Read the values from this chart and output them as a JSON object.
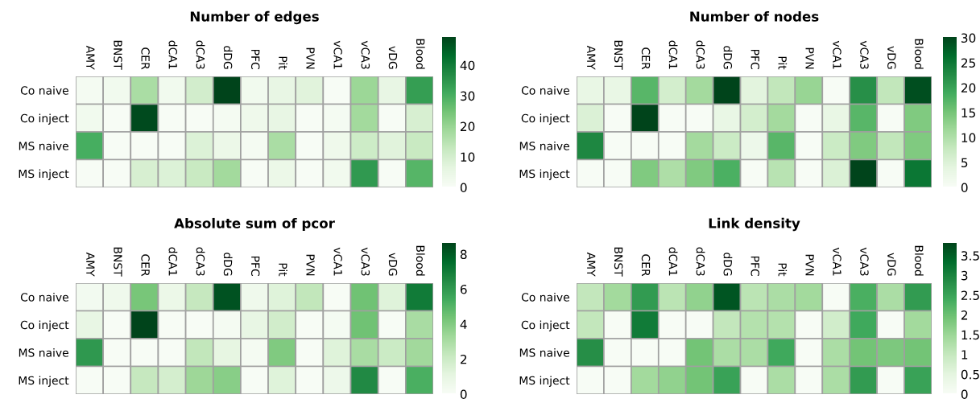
{
  "chart_data": [
    {
      "type": "heatmap",
      "title": "Number of edges",
      "categories": [
        "AMY",
        "BNST",
        "CER",
        "dCA1",
        "dCA3",
        "dDG",
        "PFC",
        "Pit",
        "PVN",
        "vCA1",
        "vCA3",
        "vDG",
        "Blood"
      ],
      "y_categories": [
        "Co naive",
        "Co inject",
        "MS naive",
        "MS inject"
      ],
      "cells": [
        [
          1,
          2,
          17,
          2,
          10,
          49,
          2,
          5,
          7,
          0,
          19,
          5,
          33
        ],
        [
          2,
          0,
          48,
          0,
          0,
          1,
          3,
          5,
          0,
          1,
          18,
          0,
          9
        ],
        [
          30,
          0,
          0,
          0,
          8,
          4,
          1,
          17,
          0,
          3,
          11,
          7,
          12
        ],
        [
          0,
          0,
          9,
          8,
          12,
          18,
          0,
          4,
          0,
          2,
          34,
          0,
          28
        ]
      ],
      "clim": [
        0,
        49
      ],
      "cticks": [
        0,
        10,
        20,
        30,
        40
      ]
    },
    {
      "type": "heatmap",
      "title": "Number of nodes",
      "categories": [
        "AMY",
        "BNST",
        "CER",
        "dCA1",
        "dCA3",
        "dDG",
        "PFC",
        "Pit",
        "PVN",
        "vCA1",
        "vCA3",
        "vDG",
        "Blood"
      ],
      "y_categories": [
        "Co naive",
        "Co inject",
        "MS naive",
        "MS inject"
      ],
      "cells": [
        [
          3,
          3,
          17,
          6,
          11,
          30,
          4,
          8,
          12,
          0,
          22,
          8,
          29
        ],
        [
          5,
          0,
          30,
          0,
          0,
          3,
          6,
          11,
          0,
          3,
          17,
          0,
          14
        ],
        [
          23,
          0,
          0,
          0,
          11,
          7,
          2,
          17,
          0,
          7,
          14,
          8,
          14
        ],
        [
          0,
          0,
          14,
          10,
          14,
          18,
          0,
          9,
          0,
          5,
          30,
          0,
          25
        ]
      ],
      "clim": [
        0,
        30
      ],
      "cticks": [
        0,
        5,
        10,
        15,
        20,
        25,
        30
      ]
    },
    {
      "type": "heatmap",
      "title": "Absolute sum of pcor",
      "categories": [
        "AMY",
        "BNST",
        "CER",
        "dCA1",
        "dCA3",
        "dDG",
        "PFC",
        "Pit",
        "PVN",
        "vCA1",
        "vCA3",
        "vDG",
        "Blood"
      ],
      "y_categories": [
        "Co naive",
        "Co inject",
        "MS naive",
        "MS inject"
      ],
      "cells": [
        [
          0.3,
          0.5,
          4.2,
          0.7,
          2.2,
          8.2,
          0.5,
          1.3,
          2.3,
          0,
          4.4,
          1.3,
          7.0
        ],
        [
          0.9,
          0,
          8.6,
          0,
          0,
          0.2,
          0.9,
          1.8,
          0,
          0.2,
          4.4,
          0,
          3.0
        ],
        [
          6.0,
          0,
          0,
          0,
          2.3,
          1.0,
          0.2,
          4.0,
          0,
          1.3,
          3.0,
          2.0,
          3.2
        ],
        [
          0,
          0,
          2.2,
          1.7,
          3.3,
          3.8,
          0,
          1.3,
          0,
          0.6,
          6.5,
          0,
          5.2
        ]
      ],
      "clim": [
        0,
        8.6
      ],
      "cticks": [
        0,
        2,
        4,
        6,
        8
      ]
    },
    {
      "type": "heatmap",
      "title": "Link density",
      "categories": [
        "AMY",
        "BNST",
        "CER",
        "dCA1",
        "dCA3",
        "dDG",
        "PFC",
        "Pit",
        "PVN",
        "vCA1",
        "vCA3",
        "vDG",
        "Blood"
      ],
      "y_categories": [
        "Co naive",
        "Co inject",
        "MS naive",
        "MS inject"
      ],
      "cells": [
        [
          1.0,
          1.4,
          2.6,
          1.1,
          1.6,
          3.6,
          1.1,
          1.3,
          1.4,
          0,
          2.3,
          1.3,
          2.6
        ],
        [
          1.0,
          0,
          3.1,
          0,
          0,
          1.0,
          1.2,
          1.2,
          0,
          0.8,
          2.4,
          0,
          1.4
        ],
        [
          2.8,
          0,
          0,
          0,
          1.9,
          1.3,
          1.3,
          2.4,
          0,
          1.3,
          1.9,
          1.8,
          1.9
        ],
        [
          0,
          0,
          1.4,
          1.6,
          1.9,
          2.5,
          0,
          1.3,
          0,
          1.3,
          2.6,
          0,
          2.5
        ]
      ],
      "clim": [
        0,
        3.8
      ],
      "cticks": [
        0,
        0.5,
        1,
        1.5,
        2,
        2.5,
        3,
        3.5
      ]
    }
  ]
}
